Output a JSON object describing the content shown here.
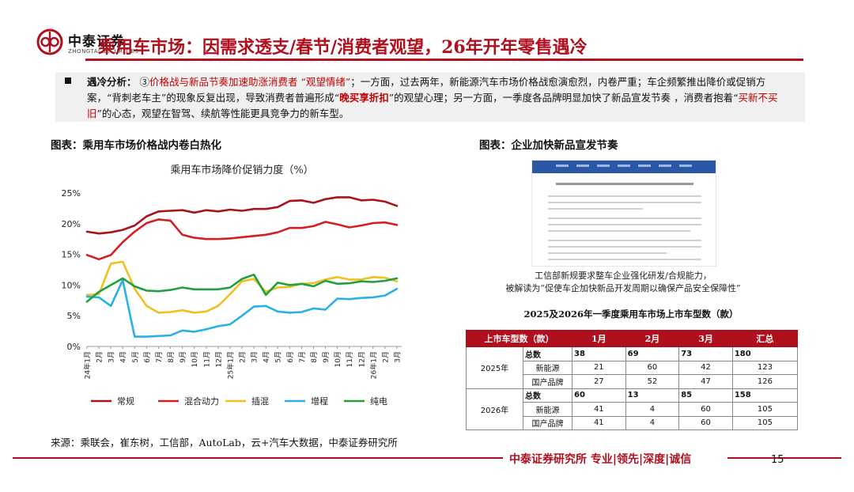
{
  "brand": {
    "name_cn": "中泰证券",
    "name_en": "ZHONGTAI SECURITIES"
  },
  "title": "乘用车市场：因需求透支/春节/消费者观望，26年开年零售遇冷",
  "analysis": {
    "label": "遇冷分析：",
    "parts": [
      {
        "text": "③",
        "style": "plain"
      },
      {
        "text": "价格战与新品节奏加速助涨消费者 “观望情绪”",
        "style": "red"
      },
      {
        "text": "；一方面，过去两年，新能源汽车市场价格战愈演愈烈，内卷严重；车企频繁推出降价或促销方案，“背刺老车主”的现象反复出现，导致消费者普遍形成“",
        "style": "plain"
      },
      {
        "text": "晚买享折扣",
        "style": "red-b"
      },
      {
        "text": "”的观望心理；另一方面，一季度各品牌明显加快了新品宣发节奏 ，消费者抱着“",
        "style": "plain"
      },
      {
        "text": "买新不买旧",
        "style": "red"
      },
      {
        "text": "”的心态，观望在智驾、续航等性能更具竞争力的新车型。",
        "style": "plain"
      }
    ]
  },
  "figure_left_title": "图表：乘用车市场价格战内卷白热化",
  "figure_right_title": "图表：企业加快新品宣发节奏",
  "chart_data": {
    "type": "line",
    "title": "乘用车市场降价促销力度（%）",
    "x": [
      "24年1月",
      "2月",
      "3月",
      "4月",
      "5月",
      "6月",
      "7月",
      "8月",
      "9月",
      "10月",
      "11月",
      "12月",
      "25年1月",
      "2月",
      "3月",
      "4月",
      "5月",
      "6月",
      "7月",
      "8月",
      "9月",
      "10月",
      "11月",
      "12月",
      "26年1月",
      "2月",
      "3月"
    ],
    "ylim": [
      0,
      25
    ],
    "yticks": [
      "0%",
      "5%",
      "10%",
      "15%",
      "20%",
      "25%"
    ],
    "grid": false,
    "legend": "bottom",
    "series": [
      {
        "name": "常规",
        "color": "#a8141e",
        "values": [
          18.7,
          18.4,
          18.6,
          19.0,
          19.7,
          21.2,
          22.0,
          22.1,
          22.2,
          21.8,
          22.2,
          22.0,
          22.3,
          22.1,
          22.4,
          22.4,
          22.7,
          23.7,
          23.8,
          23.4,
          24.0,
          24.3,
          24.3,
          23.8,
          23.9,
          23.6,
          22.9
        ]
      },
      {
        "name": "混合动力",
        "color": "#d42020",
        "values": [
          14.9,
          14.2,
          14.9,
          17.0,
          18.7,
          20.1,
          20.7,
          20.5,
          18.2,
          17.7,
          17.5,
          17.5,
          17.6,
          17.8,
          18.0,
          18.2,
          18.6,
          19.3,
          19.3,
          19.6,
          20.3,
          19.9,
          19.4,
          19.7,
          20.1,
          20.2,
          19.8
        ]
      },
      {
        "name": "插混",
        "color": "#f0c020",
        "values": [
          8.4,
          8.5,
          13.5,
          13.8,
          9.4,
          6.6,
          5.5,
          5.6,
          5.9,
          5.5,
          5.7,
          6.6,
          8.5,
          10.6,
          11.0,
          8.9,
          9.6,
          9.7,
          10.2,
          10.3,
          10.9,
          11.3,
          10.9,
          10.9,
          11.3,
          11.2,
          10.6
        ]
      },
      {
        "name": "增程",
        "color": "#2ab0e4",
        "values": [
          8.1,
          8.0,
          6.6,
          10.8,
          1.6,
          1.6,
          1.7,
          1.8,
          2.6,
          2.4,
          2.8,
          3.3,
          3.6,
          5.0,
          6.5,
          6.6,
          5.7,
          5.5,
          5.6,
          6.2,
          6.0,
          7.8,
          7.7,
          7.9,
          8.0,
          8.3,
          9.4
        ]
      },
      {
        "name": "纯电",
        "color": "#20a040",
        "values": [
          7.3,
          8.9,
          10.0,
          11.1,
          9.8,
          9.1,
          9.0,
          9.2,
          9.6,
          9.3,
          9.3,
          9.3,
          9.6,
          11.0,
          11.7,
          8.4,
          10.4,
          10.0,
          10.2,
          9.8,
          10.7,
          10.2,
          10.3,
          10.6,
          10.5,
          10.7,
          11.1
        ]
      }
    ]
  },
  "doc_caption": [
    "工信部新规要求整车企业强化研发/合规能力，",
    "被解读为“促使车企加快新品开发周期以确保产品安全保障性”"
  ],
  "table": {
    "title": "2025及2026年一季度乘用车市场上市车型数（款）",
    "headers": [
      "上市车型数（款）",
      "1月",
      "2月",
      "3月",
      "汇总"
    ],
    "groups": [
      {
        "year": "2025年",
        "rows": [
          {
            "label": "总数",
            "values": [
              "38",
              "69",
              "73",
              "180"
            ],
            "total": true
          },
          {
            "label": "新能源",
            "values": [
              "21",
              "60",
              "42",
              "123"
            ],
            "total": false
          },
          {
            "label": "国产品牌",
            "values": [
              "27",
              "52",
              "47",
              "126"
            ],
            "total": false
          }
        ]
      },
      {
        "year": "2026年",
        "rows": [
          {
            "label": "总数",
            "values": [
              "60",
              "13",
              "85",
              "158"
            ],
            "total": true
          },
          {
            "label": "新能源",
            "values": [
              "41",
              "4",
              "60",
              "105"
            ],
            "total": false
          },
          {
            "label": "国产品牌",
            "values": [
              "41",
              "4",
              "60",
              "105"
            ],
            "total": false
          }
        ]
      }
    ]
  },
  "source": "来源：乘联会，崔东树，工信部，AutoLab，云+汽车大数据，中泰证券研究所",
  "footer": {
    "slogan": "中泰证券研究所 专业|领先|深度|诚信",
    "page": "15"
  }
}
